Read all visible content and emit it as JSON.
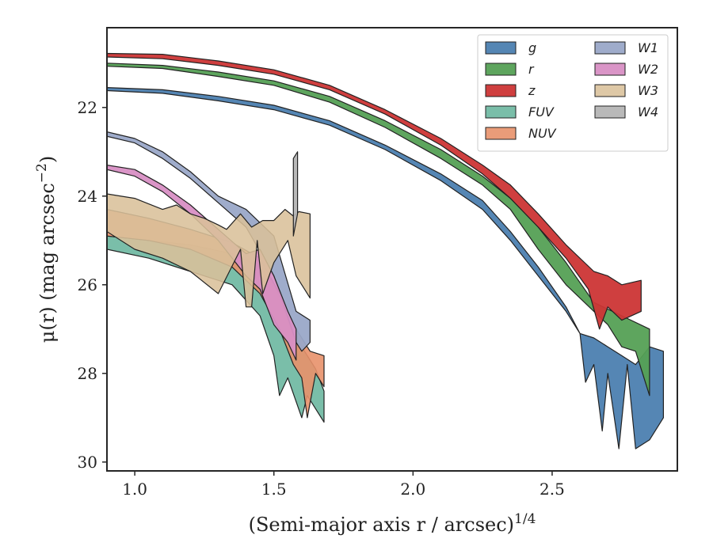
{
  "chart_data": {
    "type": "area",
    "title": "",
    "xlabel": "(Semi-major axis r / arcsec)",
    "xlabel_superscript": "1/4",
    "ylabel": "μ(r) (mag arcsec",
    "ylabel_superscript": "−2",
    "ylabel_suffix": ")",
    "xlim": [
      0.9,
      2.95
    ],
    "ylim": [
      30.2,
      20.2
    ],
    "y_inverted": true,
    "grid": false,
    "legend_placement": "top-right",
    "legend_columns": 2,
    "x_ticks": [
      1.0,
      1.5,
      2.0,
      2.5
    ],
    "x_tick_labels": [
      "1.0",
      "1.5",
      "2.0",
      "2.5"
    ],
    "y_ticks": [
      22,
      24,
      26,
      28,
      30
    ],
    "y_tick_labels": [
      "22",
      "24",
      "26",
      "28",
      "30"
    ],
    "series": [
      {
        "name": "g",
        "color": "#4c7fb0",
        "opacity": 0.95,
        "upper": [
          [
            0.9,
            21.55
          ],
          [
            1.1,
            21.6
          ],
          [
            1.3,
            21.75
          ],
          [
            1.5,
            21.95
          ],
          [
            1.7,
            22.3
          ],
          [
            1.9,
            22.85
          ],
          [
            2.1,
            23.5
          ],
          [
            2.25,
            24.1
          ],
          [
            2.35,
            24.8
          ],
          [
            2.45,
            25.6
          ],
          [
            2.55,
            26.5
          ],
          [
            2.6,
            27.1
          ],
          [
            2.65,
            27.2
          ],
          [
            2.7,
            27.4
          ],
          [
            2.75,
            27.6
          ],
          [
            2.8,
            27.8
          ],
          [
            2.85,
            27.4
          ],
          [
            2.9,
            27.5
          ]
        ],
        "lower": [
          [
            2.9,
            29.0
          ],
          [
            2.85,
            29.5
          ],
          [
            2.8,
            29.7
          ],
          [
            2.77,
            27.8
          ],
          [
            2.74,
            29.7
          ],
          [
            2.7,
            28.0
          ],
          [
            2.68,
            29.3
          ],
          [
            2.65,
            27.8
          ],
          [
            2.62,
            28.2
          ],
          [
            2.6,
            27.1
          ],
          [
            2.55,
            26.6
          ],
          [
            2.45,
            25.8
          ],
          [
            2.35,
            25.0
          ],
          [
            2.25,
            24.3
          ],
          [
            2.1,
            23.65
          ],
          [
            1.9,
            22.95
          ],
          [
            1.7,
            22.4
          ],
          [
            1.5,
            22.05
          ],
          [
            1.3,
            21.85
          ],
          [
            1.1,
            21.68
          ],
          [
            0.9,
            21.62
          ]
        ]
      },
      {
        "name": "r",
        "color": "#55a055",
        "opacity": 0.95,
        "upper": [
          [
            0.9,
            21.0
          ],
          [
            1.1,
            21.05
          ],
          [
            1.3,
            21.2
          ],
          [
            1.5,
            21.4
          ],
          [
            1.7,
            21.75
          ],
          [
            1.9,
            22.3
          ],
          [
            2.1,
            22.95
          ],
          [
            2.25,
            23.55
          ],
          [
            2.35,
            24.05
          ],
          [
            2.45,
            24.7
          ],
          [
            2.55,
            25.5
          ],
          [
            2.65,
            26.4
          ],
          [
            2.75,
            26.7
          ],
          [
            2.85,
            27.0
          ]
        ],
        "lower": [
          [
            2.85,
            28.5
          ],
          [
            2.8,
            27.5
          ],
          [
            2.75,
            27.4
          ],
          [
            2.7,
            26.9
          ],
          [
            2.65,
            26.6
          ],
          [
            2.55,
            26.0
          ],
          [
            2.45,
            25.2
          ],
          [
            2.35,
            24.3
          ],
          [
            2.25,
            23.75
          ],
          [
            2.1,
            23.15
          ],
          [
            1.9,
            22.45
          ],
          [
            1.7,
            21.88
          ],
          [
            1.5,
            21.5
          ],
          [
            1.3,
            21.3
          ],
          [
            1.1,
            21.12
          ],
          [
            0.9,
            21.07
          ]
        ]
      },
      {
        "name": "z",
        "color": "#cc3535",
        "opacity": 0.95,
        "upper": [
          [
            0.9,
            20.78
          ],
          [
            1.1,
            20.8
          ],
          [
            1.3,
            20.95
          ],
          [
            1.5,
            21.15
          ],
          [
            1.7,
            21.5
          ],
          [
            1.9,
            22.05
          ],
          [
            2.1,
            22.7
          ],
          [
            2.25,
            23.3
          ],
          [
            2.35,
            23.75
          ],
          [
            2.45,
            24.4
          ],
          [
            2.55,
            25.1
          ],
          [
            2.65,
            25.7
          ],
          [
            2.7,
            25.8
          ],
          [
            2.75,
            26.0
          ],
          [
            2.82,
            25.9
          ]
        ],
        "lower": [
          [
            2.82,
            26.6
          ],
          [
            2.75,
            26.8
          ],
          [
            2.7,
            26.5
          ],
          [
            2.67,
            27.0
          ],
          [
            2.63,
            26.1
          ],
          [
            2.55,
            25.4
          ],
          [
            2.45,
            24.7
          ],
          [
            2.35,
            24.05
          ],
          [
            2.25,
            23.5
          ],
          [
            2.1,
            22.85
          ],
          [
            1.9,
            22.15
          ],
          [
            1.7,
            21.6
          ],
          [
            1.5,
            21.25
          ],
          [
            1.3,
            21.05
          ],
          [
            1.1,
            20.9
          ],
          [
            0.9,
            20.86
          ]
        ]
      },
      {
        "name": "FUV",
        "color": "#6cb7a0",
        "opacity": 0.9,
        "upper": [
          [
            0.9,
            24.9
          ],
          [
            1.05,
            25.0
          ],
          [
            1.2,
            25.1
          ],
          [
            1.35,
            25.3
          ],
          [
            1.45,
            25.6
          ],
          [
            1.5,
            26.0
          ],
          [
            1.55,
            26.7
          ],
          [
            1.6,
            27.4
          ],
          [
            1.65,
            27.9
          ],
          [
            1.68,
            28.4
          ]
        ],
        "lower": [
          [
            1.68,
            29.1
          ],
          [
            1.62,
            28.5
          ],
          [
            1.6,
            29.0
          ],
          [
            1.55,
            28.1
          ],
          [
            1.52,
            28.5
          ],
          [
            1.5,
            27.6
          ],
          [
            1.45,
            26.7
          ],
          [
            1.35,
            26.0
          ],
          [
            1.2,
            25.7
          ],
          [
            1.05,
            25.4
          ],
          [
            0.9,
            25.2
          ]
        ]
      },
      {
        "name": "NUV",
        "color": "#e8916a",
        "opacity": 0.9,
        "upper": [
          [
            0.9,
            24.3
          ],
          [
            1.05,
            24.5
          ],
          [
            1.2,
            24.75
          ],
          [
            1.35,
            25.05
          ],
          [
            1.45,
            25.4
          ],
          [
            1.52,
            26.2
          ],
          [
            1.58,
            27.0
          ],
          [
            1.63,
            27.5
          ],
          [
            1.68,
            27.6
          ]
        ],
        "lower": [
          [
            1.68,
            28.3
          ],
          [
            1.65,
            28.0
          ],
          [
            1.62,
            29.0
          ],
          [
            1.6,
            28.1
          ],
          [
            1.57,
            27.8
          ],
          [
            1.52,
            27.0
          ],
          [
            1.45,
            26.2
          ],
          [
            1.35,
            25.6
          ],
          [
            1.2,
            25.2
          ],
          [
            1.05,
            25.0
          ],
          [
            0.9,
            24.9
          ]
        ]
      },
      {
        "name": "W1",
        "color": "#9aa8c8",
        "opacity": 0.95,
        "upper": [
          [
            0.9,
            22.55
          ],
          [
            1.0,
            22.7
          ],
          [
            1.1,
            23.0
          ],
          [
            1.2,
            23.45
          ],
          [
            1.3,
            24.0
          ],
          [
            1.4,
            24.3
          ],
          [
            1.5,
            24.9
          ],
          [
            1.58,
            26.6
          ],
          [
            1.63,
            26.8
          ]
        ],
        "lower": [
          [
            1.63,
            27.3
          ],
          [
            1.6,
            27.5
          ],
          [
            1.58,
            27.3
          ],
          [
            1.5,
            25.8
          ],
          [
            1.4,
            24.7
          ],
          [
            1.3,
            24.15
          ],
          [
            1.2,
            23.6
          ],
          [
            1.1,
            23.15
          ],
          [
            1.0,
            22.8
          ],
          [
            0.9,
            22.65
          ]
        ]
      },
      {
        "name": "W2",
        "color": "#d88fc4",
        "opacity": 0.95,
        "upper": [
          [
            0.9,
            23.3
          ],
          [
            1.0,
            23.4
          ],
          [
            1.1,
            23.75
          ],
          [
            1.2,
            24.2
          ],
          [
            1.3,
            24.75
          ],
          [
            1.4,
            25.3
          ],
          [
            1.45,
            25.2
          ],
          [
            1.5,
            25.8
          ],
          [
            1.55,
            26.6
          ],
          [
            1.58,
            27.0
          ]
        ],
        "lower": [
          [
            1.58,
            27.7
          ],
          [
            1.55,
            27.3
          ],
          [
            1.5,
            26.9
          ],
          [
            1.45,
            26.1
          ],
          [
            1.4,
            25.8
          ],
          [
            1.3,
            25.0
          ],
          [
            1.2,
            24.4
          ],
          [
            1.1,
            23.9
          ],
          [
            1.0,
            23.55
          ],
          [
            0.9,
            23.4
          ]
        ]
      },
      {
        "name": "W3",
        "color": "#d9c09a",
        "opacity": 0.88,
        "upper": [
          [
            0.9,
            23.95
          ],
          [
            1.0,
            24.05
          ],
          [
            1.1,
            24.3
          ],
          [
            1.15,
            24.2
          ],
          [
            1.2,
            24.4
          ],
          [
            1.25,
            24.5
          ],
          [
            1.3,
            24.65
          ],
          [
            1.33,
            24.75
          ],
          [
            1.38,
            24.4
          ],
          [
            1.42,
            24.7
          ],
          [
            1.46,
            24.55
          ],
          [
            1.5,
            24.55
          ],
          [
            1.54,
            24.3
          ],
          [
            1.57,
            24.45
          ],
          [
            1.59,
            24.35
          ],
          [
            1.63,
            24.4
          ]
        ],
        "lower": [
          [
            1.63,
            26.3
          ],
          [
            1.58,
            25.8
          ],
          [
            1.55,
            25.0
          ],
          [
            1.5,
            25.5
          ],
          [
            1.46,
            26.2
          ],
          [
            1.44,
            25.0
          ],
          [
            1.42,
            26.5
          ],
          [
            1.4,
            26.5
          ],
          [
            1.38,
            25.2
          ],
          [
            1.3,
            26.2
          ],
          [
            1.2,
            25.7
          ],
          [
            1.1,
            25.4
          ],
          [
            1.0,
            25.2
          ],
          [
            0.9,
            24.8
          ]
        ]
      },
      {
        "name": "W4",
        "color": "#b5b5b5",
        "opacity": 0.95,
        "upper": [
          [
            1.57,
            23.15
          ],
          [
            1.585,
            23.0
          ]
        ],
        "lower": [
          [
            1.585,
            24.4
          ],
          [
            1.57,
            24.9
          ]
        ]
      }
    ]
  }
}
